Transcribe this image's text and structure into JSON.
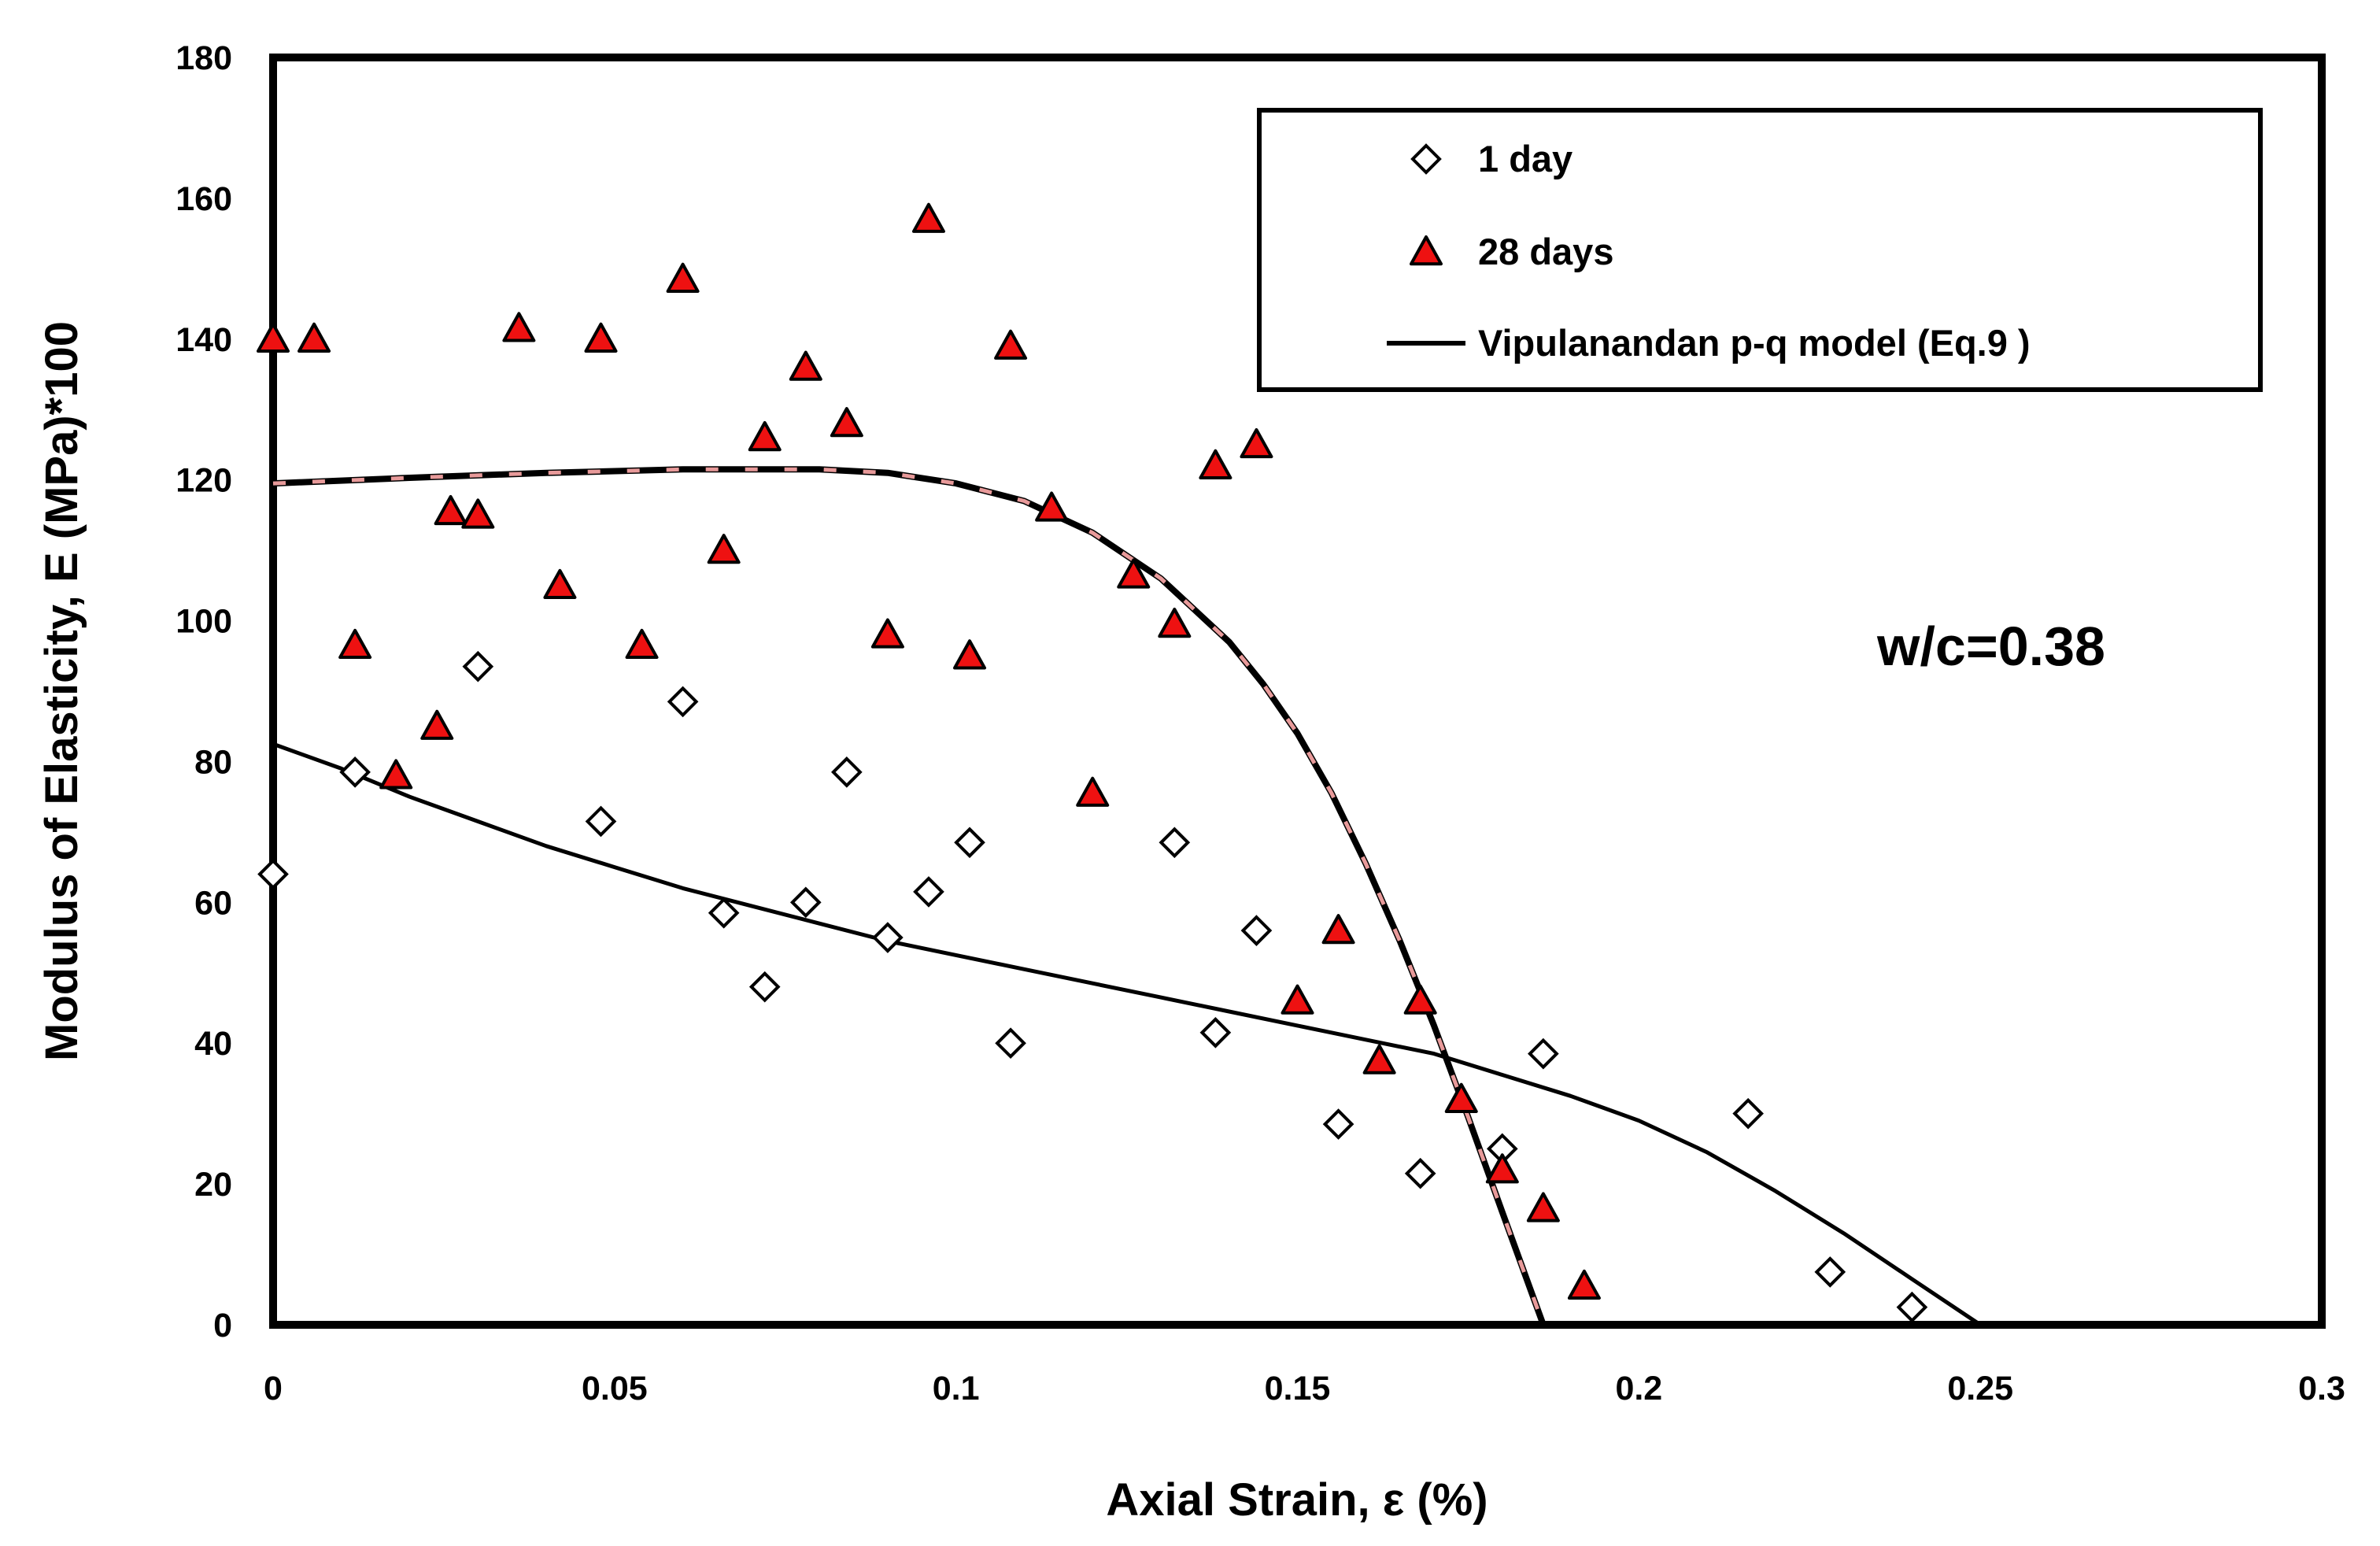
{
  "chart_data": {
    "type": "scatter",
    "title": "",
    "xlabel": "Axial Strain, ε (%)",
    "ylabel": "Modulus of Elasticity, E (MPa)*100",
    "xlim": [
      0,
      0.3
    ],
    "ylim": [
      0,
      180
    ],
    "x_ticks": [
      "0",
      "0.05",
      "0.1",
      "0.15",
      "0.2",
      "0.25",
      "0.3"
    ],
    "y_ticks": [
      "0",
      "20",
      "40",
      "60",
      "80",
      "100",
      "120",
      "140",
      "160",
      "180"
    ],
    "grid": false,
    "legend_position": "top-right",
    "annotation": "w/c=0.38",
    "colors": {
      "day1_marker_fill": "#ffffff",
      "day28_marker_fill": "#ee1111",
      "marker_stroke": "#000000",
      "model_line": "#000000",
      "dashed_overlay": "#e89a9a"
    },
    "series": [
      {
        "name": "1 day",
        "marker": "diamond",
        "points": [
          [
            0,
            64
          ],
          [
            0.012,
            78.5
          ],
          [
            0.03,
            93.5
          ],
          [
            0.048,
            71.5
          ],
          [
            0.06,
            88.5
          ],
          [
            0.066,
            58.5
          ],
          [
            0.072,
            48
          ],
          [
            0.078,
            60
          ],
          [
            0.084,
            78.5
          ],
          [
            0.09,
            55
          ],
          [
            0.096,
            61.5
          ],
          [
            0.102,
            68.5
          ],
          [
            0.108,
            40
          ],
          [
            0.132,
            68.5
          ],
          [
            0.138,
            41.5
          ],
          [
            0.144,
            56
          ],
          [
            0.156,
            28.5
          ],
          [
            0.168,
            21.5
          ],
          [
            0.18,
            25
          ],
          [
            0.186,
            38.5
          ],
          [
            0.216,
            30
          ],
          [
            0.228,
            7.5
          ],
          [
            0.24,
            2.5
          ]
        ]
      },
      {
        "name": "28 days",
        "marker": "triangle",
        "points": [
          [
            0,
            140
          ],
          [
            0.006,
            140
          ],
          [
            0.012,
            96.5
          ],
          [
            0.018,
            78
          ],
          [
            0.024,
            85
          ],
          [
            0.026,
            115.5
          ],
          [
            0.03,
            115
          ],
          [
            0.036,
            141.5
          ],
          [
            0.042,
            105
          ],
          [
            0.048,
            140
          ],
          [
            0.054,
            96.5
          ],
          [
            0.06,
            148.5
          ],
          [
            0.066,
            110
          ],
          [
            0.072,
            126
          ],
          [
            0.078,
            136
          ],
          [
            0.084,
            128
          ],
          [
            0.09,
            98
          ],
          [
            0.096,
            157
          ],
          [
            0.102,
            95
          ],
          [
            0.108,
            139
          ],
          [
            0.114,
            116
          ],
          [
            0.12,
            75.5
          ],
          [
            0.126,
            106.5
          ],
          [
            0.132,
            99.5
          ],
          [
            0.138,
            122
          ],
          [
            0.144,
            125
          ],
          [
            0.15,
            46
          ],
          [
            0.156,
            56
          ],
          [
            0.162,
            37.5
          ],
          [
            0.168,
            46
          ],
          [
            0.174,
            32
          ],
          [
            0.18,
            22
          ],
          [
            0.186,
            16.5
          ],
          [
            0.192,
            5.5
          ]
        ]
      },
      {
        "name": "Vipulanandan p-q model (Eq.9 )",
        "type": "line",
        "curves": [
          {
            "id": "model-1-day",
            "points": [
              [
                0,
                82.5
              ],
              [
                0.01,
                79
              ],
              [
                0.02,
                75
              ],
              [
                0.03,
                71.5
              ],
              [
                0.04,
                68
              ],
              [
                0.05,
                65
              ],
              [
                0.06,
                62
              ],
              [
                0.07,
                59.5
              ],
              [
                0.08,
                57
              ],
              [
                0.09,
                54.5
              ],
              [
                0.1,
                52.5
              ],
              [
                0.11,
                50.5
              ],
              [
                0.12,
                48.5
              ],
              [
                0.13,
                46.5
              ],
              [
                0.14,
                44.5
              ],
              [
                0.15,
                42.5
              ],
              [
                0.16,
                40.5
              ],
              [
                0.17,
                38.5
              ],
              [
                0.18,
                35.5
              ],
              [
                0.19,
                32.5
              ],
              [
                0.2,
                29
              ],
              [
                0.21,
                24.5
              ],
              [
                0.22,
                19
              ],
              [
                0.23,
                13
              ],
              [
                0.24,
                6.5
              ],
              [
                0.25,
                0
              ]
            ]
          },
          {
            "id": "model-28-days",
            "points": [
              [
                0,
                119.5
              ],
              [
                0.02,
                120.3
              ],
              [
                0.04,
                121
              ],
              [
                0.06,
                121.5
              ],
              [
                0.08,
                121.5
              ],
              [
                0.09,
                121
              ],
              [
                0.1,
                119.5
              ],
              [
                0.11,
                117
              ],
              [
                0.12,
                112.5
              ],
              [
                0.13,
                106
              ],
              [
                0.14,
                97
              ],
              [
                0.145,
                91
              ],
              [
                0.15,
                84
              ],
              [
                0.155,
                75.5
              ],
              [
                0.16,
                65.5
              ],
              [
                0.165,
                54.5
              ],
              [
                0.17,
                42.5
              ],
              [
                0.175,
                29.5
              ],
              [
                0.18,
                16
              ],
              [
                0.186,
                0
              ]
            ]
          }
        ]
      }
    ]
  }
}
